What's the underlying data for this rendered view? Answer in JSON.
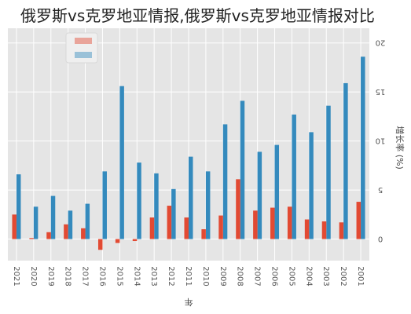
{
  "title": "俄罗斯vs克罗地亚情报,俄罗斯vs克罗地亚情报对比",
  "chart_data": {
    "type": "bar",
    "orientation": "rotated-180",
    "xlabel": "年",
    "ylabel": "增长率 (%)",
    "categories": [
      "2001",
      "2002",
      "2003",
      "2004",
      "2005",
      "2006",
      "2007",
      "2008",
      "2009",
      "2010",
      "2011",
      "2012",
      "2013",
      "2014",
      "2015",
      "2016",
      "2017",
      "2018",
      "2019",
      "2020",
      "2021"
    ],
    "series": [
      {
        "name": "",
        "color": "#348abd",
        "values": [
          18.6,
          15.9,
          13.6,
          10.9,
          12.7,
          9.6,
          8.9,
          14.1,
          11.7,
          6.9,
          8.4,
          5.1,
          6.7,
          7.8,
          15.6,
          6.9,
          3.6,
          2.9,
          4.4,
          3.3,
          6.6
        ]
      },
      {
        "name": "",
        "color": "#e24a33",
        "values": [
          3.8,
          1.7,
          1.8,
          2.0,
          3.3,
          3.2,
          2.9,
          6.1,
          2.4,
          1.0,
          2.2,
          3.4,
          2.2,
          -0.2,
          -0.4,
          -1.1,
          1.1,
          1.5,
          0.7,
          0.1,
          2.5
        ]
      }
    ],
    "ylim": [
      -2.2,
      21.5
    ],
    "yticks": [
      0,
      5,
      10,
      15,
      20
    ],
    "grid": true,
    "legend": "top-right"
  }
}
